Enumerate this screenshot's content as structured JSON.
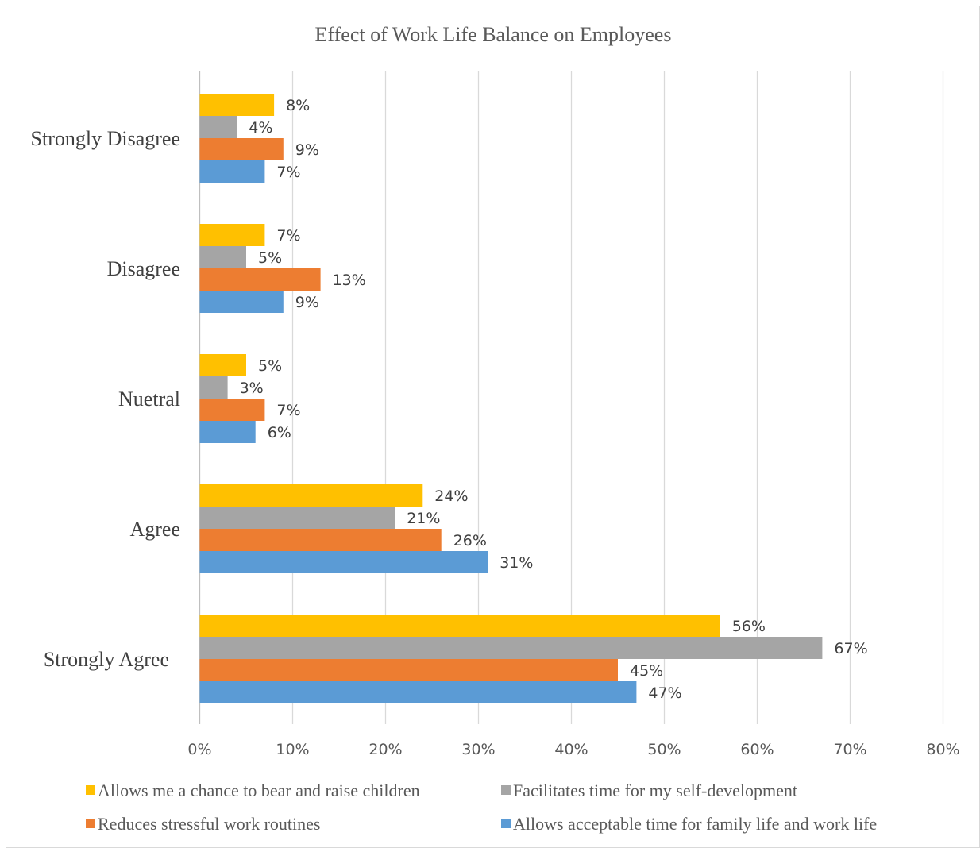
{
  "colors": {
    "yellow": "#FFC000",
    "gray": "#A5A5A5",
    "orange": "#ED7D31",
    "blue": "#5B9BD5"
  },
  "chart_data": {
    "type": "bar",
    "orientation": "horizontal",
    "title": "Effect of Work Life Balance on Employees",
    "categories": [
      "Strongly Disagree",
      "Disagree",
      "Nuetral",
      "Agree",
      "Strongly Agree"
    ],
    "series": [
      {
        "name": "Allows me a chance to bear and raise children",
        "color": "#FFC000",
        "values": [
          8,
          7,
          5,
          24,
          56
        ]
      },
      {
        "name": "Facilitates time for my self-development",
        "color": "#A5A5A5",
        "values": [
          4,
          5,
          3,
          21,
          67
        ]
      },
      {
        "name": "Reduces stressful work routines",
        "color": "#ED7D31",
        "values": [
          9,
          13,
          7,
          26,
          45
        ]
      },
      {
        "name": "Allows acceptable time for family life and work life",
        "color": "#5B9BD5",
        "values": [
          7,
          9,
          6,
          31,
          47
        ]
      }
    ],
    "value_unit": "%",
    "xlim": [
      0,
      80
    ],
    "x_ticks": [
      "0%",
      "10%",
      "20%",
      "30%",
      "40%",
      "50%",
      "60%",
      "70%",
      "80%"
    ],
    "gridlines": true,
    "legend_position": "bottom"
  }
}
